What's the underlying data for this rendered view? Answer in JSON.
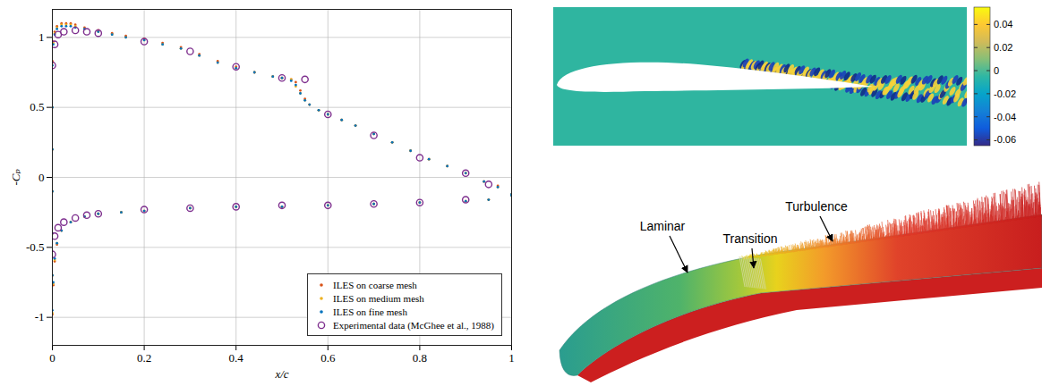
{
  "chart_data": {
    "type": "scatter",
    "x_label": "x/c",
    "y_label": "-Cₚ",
    "xlim": [
      0,
      1
    ],
    "xticks": [
      0,
      0.2,
      0.4,
      0.6,
      0.8,
      1
    ],
    "ylim": [
      -1.2,
      1.2
    ],
    "yticks": [
      -1,
      -0.5,
      0,
      0.5,
      1
    ],
    "grid": true,
    "legend": "lower right",
    "series": [
      {
        "name": "ILES on coarse mesh",
        "color": "#d95319",
        "marker": "dot",
        "x": [
          0,
          0.002,
          0.005,
          0.01,
          0.02,
          0.03,
          0.04,
          0.05,
          0.07,
          0.1,
          0.13,
          0.16,
          0.2,
          0.24,
          0.28,
          0.32,
          0.36,
          0.4,
          0.44,
          0.48,
          0.5,
          0.52,
          0.53,
          0.54,
          0.55,
          0.56,
          0.58,
          0.6,
          0.63,
          0.66,
          0.7,
          0.74,
          0.78,
          0.82,
          0.86,
          0.9,
          0.94,
          0.97,
          1,
          0,
          0,
          0,
          0,
          0,
          0,
          0.002,
          0.005,
          0.01,
          0.02,
          0.04,
          0.07,
          0.1,
          0.15,
          0.2,
          0.3,
          0.4,
          0.5,
          0.6,
          0.7,
          0.8,
          0.9,
          0.95,
          1
        ],
        "values": [
          0.83,
          0.97,
          1.04,
          1.08,
          1.1,
          1.1,
          1.1,
          1.09,
          1.07,
          1.05,
          1.03,
          1.01,
          0.99,
          0.96,
          0.93,
          0.88,
          0.83,
          0.79,
          0.75,
          0.72,
          0.71,
          0.7,
          0.68,
          0.62,
          0.56,
          0.52,
          0.48,
          0.45,
          0.41,
          0.37,
          0.31,
          0.25,
          0.19,
          0.13,
          0.08,
          0.03,
          -0.03,
          -0.06,
          -0.12,
          0.5,
          0.2,
          -0.1,
          -0.4,
          -0.7,
          -0.98,
          -0.77,
          -0.6,
          -0.48,
          -0.38,
          -0.32,
          -0.28,
          -0.26,
          -0.25,
          -0.24,
          -0.22,
          -0.21,
          -0.21,
          -0.2,
          -0.19,
          -0.18,
          -0.17,
          -0.16,
          -0.13
        ]
      },
      {
        "name": "ILES on medium mesh",
        "color": "#edb120",
        "marker": "dot",
        "x": [
          0,
          0.002,
          0.005,
          0.01,
          0.02,
          0.03,
          0.04,
          0.05,
          0.07,
          0.1,
          0.13,
          0.16,
          0.2,
          0.24,
          0.28,
          0.32,
          0.36,
          0.4,
          0.44,
          0.48,
          0.5,
          0.52,
          0.53,
          0.54,
          0.55,
          0.56,
          0.58,
          0.6,
          0.63,
          0.66,
          0.7,
          0.74,
          0.78,
          0.82,
          0.86,
          0.9,
          0.94,
          0.97,
          1,
          0,
          0,
          0,
          0,
          0,
          0,
          0.002,
          0.005,
          0.01,
          0.02,
          0.04,
          0.07,
          0.1,
          0.15,
          0.2,
          0.3,
          0.4,
          0.5,
          0.6,
          0.7,
          0.8,
          0.9,
          0.95,
          1
        ],
        "values": [
          0.82,
          0.96,
          1.03,
          1.07,
          1.09,
          1.09,
          1.09,
          1.08,
          1.06,
          1.04,
          1.02,
          1.0,
          0.98,
          0.95,
          0.92,
          0.87,
          0.82,
          0.78,
          0.75,
          0.72,
          0.71,
          0.7,
          0.65,
          0.6,
          0.55,
          0.52,
          0.48,
          0.45,
          0.41,
          0.37,
          0.31,
          0.25,
          0.19,
          0.13,
          0.08,
          0.03,
          -0.03,
          -0.07,
          -0.12,
          0.5,
          0.2,
          -0.1,
          -0.4,
          -0.7,
          -0.97,
          -0.76,
          -0.59,
          -0.47,
          -0.38,
          -0.32,
          -0.28,
          -0.26,
          -0.25,
          -0.24,
          -0.22,
          -0.21,
          -0.21,
          -0.2,
          -0.19,
          -0.18,
          -0.17,
          -0.16,
          -0.13
        ]
      },
      {
        "name": "ILES on fine mesh",
        "color": "#0072bd",
        "marker": "dot",
        "x": [
          0,
          0.002,
          0.005,
          0.01,
          0.02,
          0.03,
          0.04,
          0.05,
          0.07,
          0.1,
          0.13,
          0.16,
          0.2,
          0.24,
          0.28,
          0.32,
          0.36,
          0.4,
          0.44,
          0.48,
          0.5,
          0.52,
          0.53,
          0.54,
          0.55,
          0.56,
          0.58,
          0.6,
          0.63,
          0.66,
          0.7,
          0.74,
          0.78,
          0.82,
          0.86,
          0.9,
          0.94,
          0.97,
          1,
          0,
          0,
          0,
          0,
          0,
          0,
          0.002,
          0.005,
          0.01,
          0.02,
          0.04,
          0.07,
          0.1,
          0.15,
          0.2,
          0.3,
          0.4,
          0.5,
          0.6,
          0.7,
          0.8,
          0.9,
          0.95,
          1
        ],
        "values": [
          0.8,
          0.95,
          1.02,
          1.06,
          1.08,
          1.08,
          1.08,
          1.07,
          1.06,
          1.04,
          1.02,
          1.0,
          0.98,
          0.95,
          0.92,
          0.87,
          0.82,
          0.78,
          0.75,
          0.72,
          0.71,
          0.69,
          0.66,
          0.6,
          0.55,
          0.52,
          0.48,
          0.45,
          0.41,
          0.37,
          0.31,
          0.25,
          0.19,
          0.13,
          0.08,
          0.03,
          -0.03,
          -0.07,
          -0.12,
          0.5,
          0.2,
          -0.1,
          -0.4,
          -0.7,
          -0.95,
          -0.75,
          -0.58,
          -0.47,
          -0.38,
          -0.32,
          -0.28,
          -0.26,
          -0.25,
          -0.24,
          -0.22,
          -0.21,
          -0.21,
          -0.2,
          -0.19,
          -0.18,
          -0.17,
          -0.16,
          -0.13
        ]
      },
      {
        "name": "Experimental data (McGhee et al., 1988)",
        "color": "#7e2f8e",
        "marker": "circle",
        "x": [
          0,
          0.005,
          0.0125,
          0.025,
          0.05,
          0.075,
          0.1,
          0.2,
          0.3,
          0.4,
          0.5,
          0.55,
          0.6,
          0.7,
          0.8,
          0.9,
          0.95,
          0,
          0.005,
          0.0125,
          0.025,
          0.05,
          0.075,
          0.1,
          0.2,
          0.3,
          0.4,
          0.5,
          0.6,
          0.7,
          0.8,
          0.9
        ],
        "values": [
          0.8,
          0.95,
          1.02,
          1.04,
          1.05,
          1.04,
          1.03,
          0.97,
          0.9,
          0.79,
          0.71,
          0.7,
          0.45,
          0.3,
          0.14,
          0.03,
          -0.05,
          -0.55,
          -0.42,
          -0.36,
          -0.32,
          -0.29,
          -0.27,
          -0.26,
          -0.23,
          -0.22,
          -0.21,
          -0.2,
          -0.2,
          -0.19,
          -0.18,
          -0.16
        ]
      }
    ]
  },
  "contour_panel": {
    "colorbar_range": [
      -0.065,
      0.055
    ],
    "colorbar_ticks": [
      0.04,
      0.02,
      0,
      -0.02,
      -0.04,
      -0.06
    ]
  },
  "isosurface_panel": {
    "labels": [
      "Laminar",
      "Transition",
      "Turbulence"
    ]
  }
}
